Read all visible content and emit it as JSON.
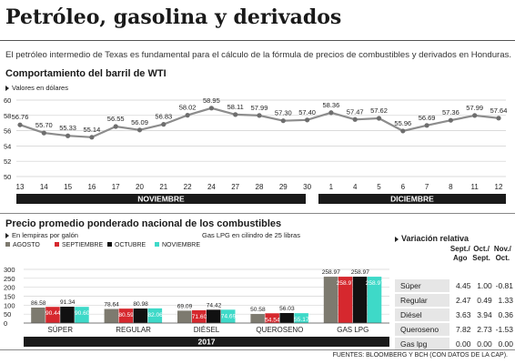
{
  "header": {
    "title": "Petróleo, gasolina y derivados",
    "subtitle": "El petróleo intermedio de Texas es fundamental para el cálculo de la fórmula de precios de combustibles y derivados en Honduras."
  },
  "wti": {
    "heading": "Comportamiento del barril de WTI",
    "unit_note": "Valores en dólares",
    "month_labels": [
      "NOVIEMBRE",
      "DICIEMBRE"
    ]
  },
  "fuel": {
    "heading": "Precio promedio ponderado nacional de los combustibles",
    "unit_note": "En lempiras por galón",
    "lpg_note": "Gas LPG en cilindro de 25 libras",
    "year_label": "2017"
  },
  "variation": {
    "heading": "Variación relativa",
    "columns": [
      "Sept./ Ago",
      "Oct./ Sept.",
      "Nov./ Oct."
    ],
    "rows": [
      {
        "label": "Súper",
        "values": [
          "4.45",
          "1.00",
          "-0.81"
        ]
      },
      {
        "label": "Regular",
        "values": [
          "2.47",
          "0.49",
          "1.33"
        ]
      },
      {
        "label": "Diésel",
        "values": [
          "3.63",
          "3.94",
          "0.36"
        ]
      },
      {
        "label": "Queroseno",
        "values": [
          "7.82",
          "2.73",
          "-1.53"
        ]
      },
      {
        "label": "Gas lpg",
        "values": [
          "0.00",
          "0.00",
          "0.00"
        ]
      }
    ]
  },
  "footer": "FUENTES: BLOOMBERG Y BCH (CON DATOS DE LA CAP).",
  "chart_data": [
    {
      "type": "line",
      "title": "Comportamiento del barril de WTI",
      "ylabel": "Valores en dólares",
      "x": [
        "13",
        "14",
        "15",
        "16",
        "17",
        "20",
        "21",
        "22",
        "24",
        "27",
        "28",
        "29",
        "30",
        "1",
        "4",
        "5",
        "6",
        "7",
        "8",
        "11",
        "12"
      ],
      "series": [
        {
          "values": [
            56.76,
            55.7,
            55.33,
            55.14,
            56.55,
            56.09,
            56.83,
            58.02,
            58.95,
            58.11,
            57.99,
            57.3,
            57.4,
            58.36,
            57.47,
            57.62,
            55.96,
            56.69,
            57.36,
            57.99,
            57.64
          ]
        }
      ],
      "ylim": [
        50,
        60
      ],
      "yticks": [
        50,
        52,
        54,
        56,
        58,
        60
      ],
      "grid": true,
      "colors": {
        "line": "#8c8c8c",
        "marker": "#6e6e6e"
      }
    },
    {
      "type": "bar",
      "title": "Precio promedio ponderado nacional de los combustibles",
      "ylabel": "En lempiras por galón",
      "categories": [
        "SÚPER",
        "REGULAR",
        "DIÉSEL",
        "QUEROSENO",
        "GAS LPG"
      ],
      "series": [
        {
          "name": "AGOSTO",
          "color": "#7d7a6f",
          "values": [
            86.58,
            78.64,
            69.09,
            50.58,
            258.97
          ],
          "labels": [
            "86.58",
            "78.64",
            "69.09",
            "50.58",
            "258.97"
          ]
        },
        {
          "name": "SEPTIEMBRE",
          "color": "#d6282e",
          "values": [
            90.44,
            80.59,
            71.6,
            54.54,
            258.97
          ],
          "labels": [
            "90.44",
            "80.59",
            "71.60",
            "54.54",
            "258.97"
          ]
        },
        {
          "name": "OCTUBRE",
          "color": "#111111",
          "values": [
            91.34,
            80.98,
            74.42,
            56.03,
            258.97
          ],
          "labels": [
            "91.34",
            "80.98",
            "74.42",
            "56.03",
            "258.97"
          ]
        },
        {
          "name": "NOVIEMBRE",
          "color": "#3ed9c8",
          "values": [
            90.6,
            82.06,
            74.69,
            55.17,
            258.97
          ],
          "labels": [
            "90.60",
            "82.06",
            "74.69",
            "55.17",
            "258.97"
          ]
        }
      ],
      "ylim": [
        0,
        300
      ],
      "yticks": [
        0,
        50,
        100,
        150,
        200,
        250,
        300
      ],
      "legend": "top"
    }
  ]
}
